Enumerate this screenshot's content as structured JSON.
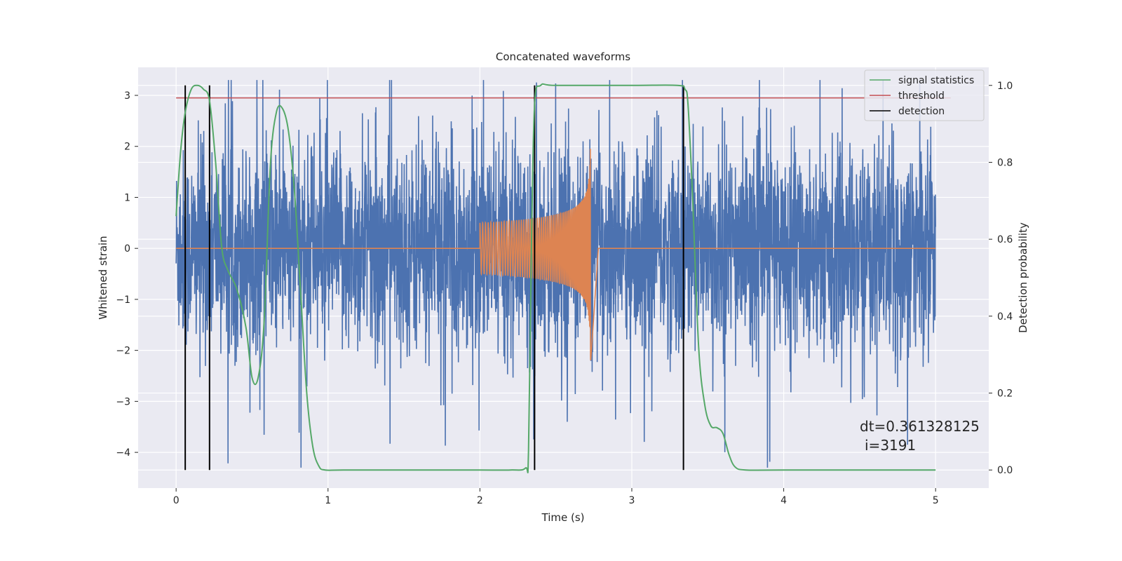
{
  "chart_data": {
    "type": "line",
    "title": "Concatenated waveforms",
    "xlabel": "Time (s)",
    "ylabel": "Whitened strain",
    "y2label": "Detection probability",
    "xlim": [
      -0.25,
      5.35
    ],
    "ylim": [
      -4.7,
      3.55
    ],
    "y2lim": [
      -0.047,
      1.047
    ],
    "xticks": [
      0,
      1,
      2,
      3,
      4,
      5
    ],
    "yticks": [
      -4,
      -3,
      -2,
      -1,
      0,
      1,
      2,
      3
    ],
    "y2ticks": [
      0.0,
      0.2,
      0.4,
      0.6,
      0.8,
      1.0
    ],
    "xtick_labels": [
      "0",
      "1",
      "2",
      "3",
      "4",
      "5"
    ],
    "ytick_labels": [
      "−4",
      "−3",
      "−2",
      "−1",
      "0",
      "1",
      "2",
      "3"
    ],
    "y2tick_labels": [
      "0.0",
      "0.2",
      "0.4",
      "0.6",
      "0.8",
      "1.0"
    ],
    "grid": true,
    "legend_position": "top-right",
    "legend": [
      {
        "label": "signal statistics",
        "color": "#55a868"
      },
      {
        "label": "threshold",
        "color": "#c44e52"
      },
      {
        "label": "detection",
        "color": "#000000"
      }
    ],
    "colors": {
      "strain": "#4c72b0",
      "injected": "#dd8452",
      "signal_statistics": "#55a868",
      "threshold": "#c44e52",
      "detection": "#000000",
      "background": "#eaeaf2",
      "grid": "#ffffff"
    },
    "strain": {
      "x_start": 0.0,
      "x_end": 5.0,
      "typical_amplitude": 1.4,
      "max": 3.3,
      "min": -4.3
    },
    "injected_signal": {
      "t_start": 2.0,
      "t_merger": 2.73,
      "t_end": 3.0,
      "start_amplitude": 0.5,
      "peak_amplitude": 2.2
    },
    "threshold": {
      "axis": "left",
      "y": 2.95,
      "x_range": [
        0.0,
        5.1
      ]
    },
    "signal_statistics": {
      "axis": "right",
      "x": [
        0.0,
        0.03,
        0.06,
        0.1,
        0.14,
        0.18,
        0.22,
        0.26,
        0.3,
        0.34,
        0.4,
        0.46,
        0.5,
        0.54,
        0.58,
        0.62,
        0.66,
        0.7,
        0.74,
        0.78,
        0.82,
        0.86,
        0.9,
        0.94,
        0.98,
        1.1,
        1.5,
        2.0,
        2.2,
        2.3,
        2.32,
        2.34,
        2.36,
        2.4,
        2.5,
        3.0,
        3.3,
        3.35,
        3.37,
        3.4,
        3.44,
        3.48,
        3.52,
        3.56,
        3.6,
        3.64,
        3.68,
        3.75,
        4.0,
        5.0
      ],
      "y": [
        0.66,
        0.83,
        0.93,
        0.99,
        1.0,
        0.99,
        0.96,
        0.8,
        0.58,
        0.52,
        0.47,
        0.37,
        0.24,
        0.24,
        0.39,
        0.79,
        0.93,
        0.94,
        0.88,
        0.72,
        0.46,
        0.2,
        0.06,
        0.01,
        0.0,
        0.0,
        0.0,
        0.0,
        0.0,
        0.005,
        0.05,
        0.6,
        0.95,
        1.0,
        1.0,
        1.0,
        1.0,
        0.99,
        0.95,
        0.71,
        0.32,
        0.17,
        0.115,
        0.11,
        0.095,
        0.04,
        0.008,
        0.0,
        0.0,
        0.0
      ]
    },
    "detections": [
      0.06,
      0.22,
      2.36,
      3.34
    ],
    "annotation": {
      "lines": [
        "dt=0.361328125",
        "i=3191"
      ]
    }
  }
}
